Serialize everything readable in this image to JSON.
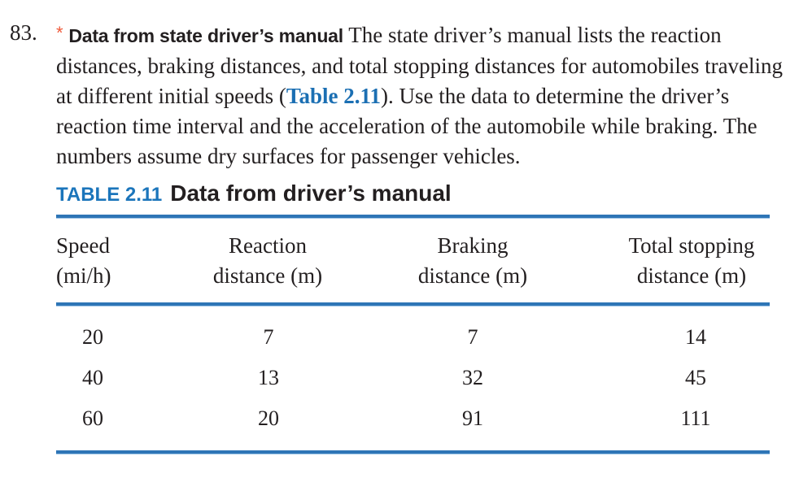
{
  "problem": {
    "number": "83.",
    "star": "*",
    "title": "Data from state driver’s manual",
    "text_before_ref": " The state driver’s manual lists the reaction distances, braking distances, and total stopping distances for automobiles traveling at different initial speeds (",
    "table_ref": "Table 2.11",
    "text_after_ref": "). Use the data to determine the driver’s reaction time interval and the acceleration of the automobile while braking. The numbers assume dry surfaces for passenger vehicles."
  },
  "table": {
    "label": "TABLE 2.11",
    "title": "Data from driver’s manual",
    "accent_color": "#2e75b6",
    "headers": [
      {
        "line1": "Speed",
        "line2": "(mi/h)"
      },
      {
        "line1": "Reaction",
        "line2": "distance (m)"
      },
      {
        "line1": "Braking",
        "line2": "distance (m)"
      },
      {
        "line1": "Total stopping",
        "line2": "distance (m)"
      }
    ],
    "rows": [
      [
        "20",
        "7",
        "7",
        "14"
      ],
      [
        "40",
        "13",
        "32",
        "45"
      ],
      [
        "60",
        "20",
        "91",
        "111"
      ]
    ]
  }
}
